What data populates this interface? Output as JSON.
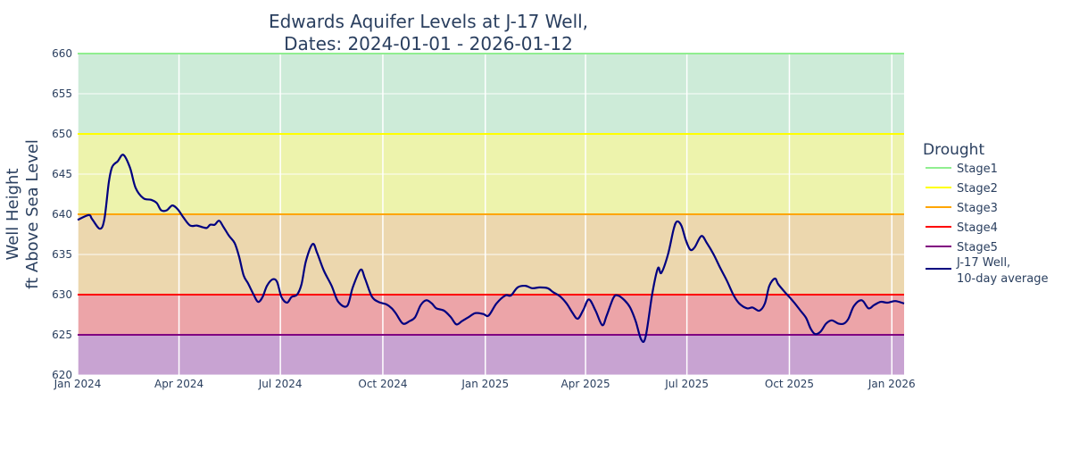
{
  "chart_data": {
    "type": "line",
    "title_lines": [
      "Edwards Aquifer Levels at J-17 Well,",
      "Dates: 2024-01-01 - 2026-01-12"
    ],
    "xlabel": "",
    "ylabel_lines": [
      "Well Height",
      "ft Above Sea Level"
    ],
    "xlim": [
      "2024-01-01",
      "2026-01-12"
    ],
    "ylim": [
      620,
      660
    ],
    "grid": true,
    "x_ticks": [
      {
        "date": "2024-01-01",
        "label": "Jan 2024"
      },
      {
        "date": "2024-04-01",
        "label": "Apr 2024"
      },
      {
        "date": "2024-07-01",
        "label": "Jul 2024"
      },
      {
        "date": "2024-10-01",
        "label": "Oct 2024"
      },
      {
        "date": "2025-01-01",
        "label": "Jan 2025"
      },
      {
        "date": "2025-04-01",
        "label": "Apr 2025"
      },
      {
        "date": "2025-07-01",
        "label": "Jul 2025"
      },
      {
        "date": "2025-10-01",
        "label": "Oct 2025"
      },
      {
        "date": "2026-01-01",
        "label": "Jan 2026"
      }
    ],
    "y_ticks": [
      620,
      625,
      630,
      635,
      640,
      645,
      650,
      655,
      660
    ],
    "legend": {
      "title": "Drought",
      "placement": "right"
    },
    "bands": [
      {
        "from": 650,
        "to": 660,
        "color": "#cdebd8"
      },
      {
        "from": 640,
        "to": 650,
        "color": "#edf3ac"
      },
      {
        "from": 630,
        "to": 640,
        "color": "#ecd7ae"
      },
      {
        "from": 625,
        "to": 630,
        "color": "#eca4a8"
      },
      {
        "from": 620,
        "to": 625,
        "color": "#c8a3d2"
      }
    ],
    "thresholds": [
      {
        "name": "Stage1",
        "value": 660,
        "color": "#90ee90"
      },
      {
        "name": "Stage2",
        "value": 650,
        "color": "#ffff00"
      },
      {
        "name": "Stage3",
        "value": 640,
        "color": "#ffa500"
      },
      {
        "name": "Stage4",
        "value": 630,
        "color": "#ff0000"
      },
      {
        "name": "Stage5",
        "value": 625,
        "color": "#800080"
      }
    ],
    "series": [
      {
        "name": "J-17 Well,\n10-day average",
        "legend_lines": [
          "J-17 Well,",
          "10-day average"
        ],
        "color": "#000080",
        "points": [
          [
            "2024-01-01",
            639.3
          ],
          [
            "2024-01-11",
            639.9
          ],
          [
            "2024-01-14",
            639.4
          ],
          [
            "2024-01-21",
            638.2
          ],
          [
            "2024-01-25",
            639.4
          ],
          [
            "2024-01-29",
            644.0
          ],
          [
            "2024-02-01",
            645.9
          ],
          [
            "2024-02-06",
            646.6
          ],
          [
            "2024-02-11",
            647.4
          ],
          [
            "2024-02-17",
            645.8
          ],
          [
            "2024-02-22",
            643.3
          ],
          [
            "2024-02-29",
            642.0
          ],
          [
            "2024-03-07",
            641.8
          ],
          [
            "2024-03-12",
            641.4
          ],
          [
            "2024-03-16",
            640.5
          ],
          [
            "2024-03-21",
            640.5
          ],
          [
            "2024-03-26",
            641.1
          ],
          [
            "2024-03-31",
            640.6
          ],
          [
            "2024-04-05",
            639.6
          ],
          [
            "2024-04-11",
            638.6
          ],
          [
            "2024-04-17",
            638.6
          ],
          [
            "2024-04-22",
            638.4
          ],
          [
            "2024-04-26",
            638.3
          ],
          [
            "2024-04-29",
            638.7
          ],
          [
            "2024-05-03",
            638.7
          ],
          [
            "2024-05-07",
            639.2
          ],
          [
            "2024-05-11",
            638.4
          ],
          [
            "2024-05-16",
            637.3
          ],
          [
            "2024-05-21",
            636.4
          ],
          [
            "2024-05-25",
            634.7
          ],
          [
            "2024-05-29",
            632.4
          ],
          [
            "2024-06-02",
            631.4
          ],
          [
            "2024-06-07",
            630.0
          ],
          [
            "2024-06-11",
            629.1
          ],
          [
            "2024-06-15",
            629.7
          ],
          [
            "2024-06-19",
            631.1
          ],
          [
            "2024-06-24",
            631.9
          ],
          [
            "2024-06-28",
            631.6
          ],
          [
            "2024-07-02",
            629.7
          ],
          [
            "2024-07-07",
            629.0
          ],
          [
            "2024-07-11",
            629.7
          ],
          [
            "2024-07-16",
            630.0
          ],
          [
            "2024-07-20",
            631.3
          ],
          [
            "2024-07-24",
            634.2
          ],
          [
            "2024-07-30",
            636.3
          ],
          [
            "2024-08-03",
            635.2
          ],
          [
            "2024-08-09",
            633.0
          ],
          [
            "2024-08-16",
            631.1
          ],
          [
            "2024-08-22",
            629.1
          ],
          [
            "2024-08-30",
            628.6
          ],
          [
            "2024-09-04",
            630.9
          ],
          [
            "2024-09-11",
            633.1
          ],
          [
            "2024-09-15",
            632.0
          ],
          [
            "2024-09-21",
            629.8
          ],
          [
            "2024-09-27",
            629.1
          ],
          [
            "2024-10-04",
            628.8
          ],
          [
            "2024-10-09",
            628.3
          ],
          [
            "2024-10-13",
            627.6
          ],
          [
            "2024-10-19",
            626.4
          ],
          [
            "2024-10-25",
            626.7
          ],
          [
            "2024-10-30",
            627.2
          ],
          [
            "2024-11-04",
            628.7
          ],
          [
            "2024-11-09",
            629.3
          ],
          [
            "2024-11-14",
            628.9
          ],
          [
            "2024-11-18",
            628.3
          ],
          [
            "2024-11-25",
            628.0
          ],
          [
            "2024-12-01",
            627.2
          ],
          [
            "2024-12-06",
            626.3
          ],
          [
            "2024-12-11",
            626.7
          ],
          [
            "2024-12-17",
            627.2
          ],
          [
            "2024-12-23",
            627.7
          ],
          [
            "2024-12-30",
            627.6
          ],
          [
            "2025-01-04",
            627.4
          ],
          [
            "2025-01-11",
            628.9
          ],
          [
            "2025-01-19",
            629.9
          ],
          [
            "2025-01-24",
            629.9
          ],
          [
            "2025-01-30",
            630.9
          ],
          [
            "2025-02-06",
            631.1
          ],
          [
            "2025-02-12",
            630.8
          ],
          [
            "2025-02-19",
            630.9
          ],
          [
            "2025-02-26",
            630.8
          ],
          [
            "2025-03-03",
            630.3
          ],
          [
            "2025-03-09",
            629.8
          ],
          [
            "2025-03-15",
            628.9
          ],
          [
            "2025-03-20",
            627.8
          ],
          [
            "2025-03-25",
            627.0
          ],
          [
            "2025-03-30",
            628.1
          ],
          [
            "2025-04-04",
            629.4
          ],
          [
            "2025-04-10",
            628.0
          ],
          [
            "2025-04-16",
            626.2
          ],
          [
            "2025-04-20",
            627.4
          ],
          [
            "2025-04-26",
            629.6
          ],
          [
            "2025-04-30",
            629.9
          ],
          [
            "2025-05-06",
            629.3
          ],
          [
            "2025-05-11",
            628.4
          ],
          [
            "2025-05-16",
            626.7
          ],
          [
            "2025-05-21",
            624.4
          ],
          [
            "2025-05-25",
            624.8
          ],
          [
            "2025-05-31",
            630.2
          ],
          [
            "2025-06-05",
            633.3
          ],
          [
            "2025-06-08",
            632.7
          ],
          [
            "2025-06-14",
            635.0
          ],
          [
            "2025-06-19",
            638.1
          ],
          [
            "2025-06-22",
            639.1
          ],
          [
            "2025-06-26",
            638.6
          ],
          [
            "2025-06-30",
            636.8
          ],
          [
            "2025-07-04",
            635.6
          ],
          [
            "2025-07-08",
            635.9
          ],
          [
            "2025-07-14",
            637.3
          ],
          [
            "2025-07-19",
            636.4
          ],
          [
            "2025-07-25",
            635.0
          ],
          [
            "2025-07-31",
            633.3
          ],
          [
            "2025-08-06",
            631.7
          ],
          [
            "2025-08-12",
            629.9
          ],
          [
            "2025-08-17",
            628.9
          ],
          [
            "2025-08-24",
            628.3
          ],
          [
            "2025-08-29",
            628.4
          ],
          [
            "2025-09-04",
            628.0
          ],
          [
            "2025-09-09",
            628.9
          ],
          [
            "2025-09-13",
            631.1
          ],
          [
            "2025-09-18",
            632.0
          ],
          [
            "2025-09-21",
            631.3
          ],
          [
            "2025-09-27",
            630.3
          ],
          [
            "2025-10-01",
            629.7
          ],
          [
            "2025-10-06",
            628.9
          ],
          [
            "2025-10-11",
            628.0
          ],
          [
            "2025-10-16",
            627.1
          ],
          [
            "2025-10-20",
            625.8
          ],
          [
            "2025-10-24",
            625.1
          ],
          [
            "2025-10-29",
            625.4
          ],
          [
            "2025-11-03",
            626.4
          ],
          [
            "2025-11-08",
            626.8
          ],
          [
            "2025-11-14",
            626.4
          ],
          [
            "2025-11-19",
            626.4
          ],
          [
            "2025-11-23",
            627.0
          ],
          [
            "2025-11-28",
            628.6
          ],
          [
            "2025-12-05",
            629.3
          ],
          [
            "2025-12-11",
            628.3
          ],
          [
            "2025-12-16",
            628.7
          ],
          [
            "2025-12-22",
            629.1
          ],
          [
            "2025-12-28",
            629.0
          ],
          [
            "2026-01-04",
            629.2
          ],
          [
            "2026-01-12",
            628.9
          ]
        ]
      }
    ]
  }
}
